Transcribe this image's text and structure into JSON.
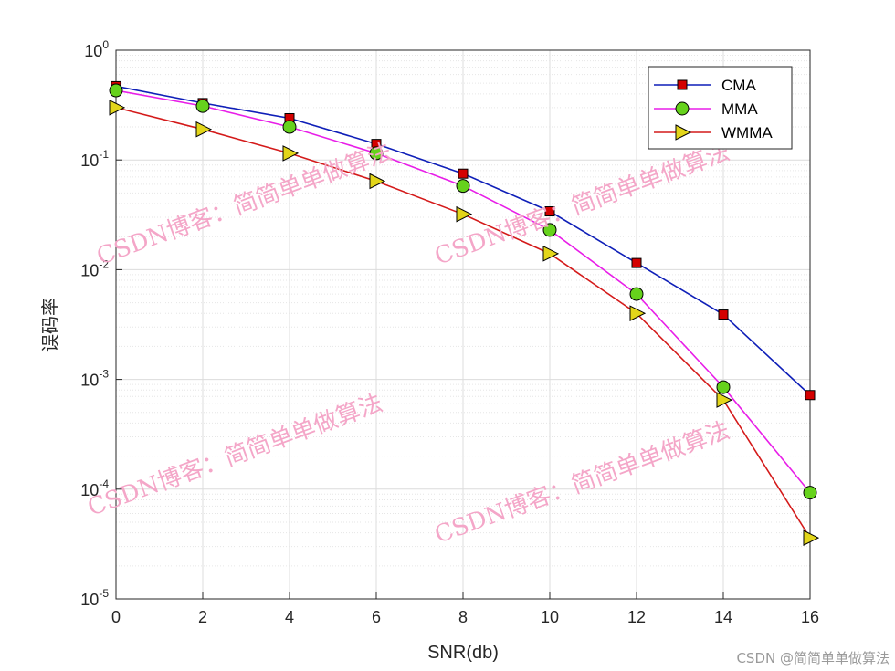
{
  "chart_data": {
    "type": "line",
    "xlabel": "SNR(db)",
    "ylabel": "误码率",
    "xlim": [
      0,
      16
    ],
    "ylim": [
      1e-05,
      1
    ],
    "yscale": "log",
    "xticks": [
      "0",
      "2",
      "4",
      "6",
      "8",
      "10",
      "12",
      "14",
      "16"
    ],
    "yticks": [
      {
        "base": "10",
        "exp": "0"
      },
      {
        "base": "10",
        "exp": "-1"
      },
      {
        "base": "10",
        "exp": "-2"
      },
      {
        "base": "10",
        "exp": "-3"
      },
      {
        "base": "10",
        "exp": "-4"
      },
      {
        "base": "10",
        "exp": "-5"
      }
    ],
    "grid": true,
    "legend_position": "top-right",
    "x": [
      0,
      2,
      4,
      6,
      8,
      10,
      12,
      14,
      16
    ],
    "series": [
      {
        "name": "CMA",
        "color": "#0f1fb8",
        "marker": "square",
        "marker_color": "#d40000",
        "values": [
          0.47,
          0.33,
          0.24,
          0.14,
          0.075,
          0.034,
          0.0115,
          0.0039,
          0.00072
        ]
      },
      {
        "name": "MMA",
        "color": "#e81ee8",
        "marker": "circle",
        "marker_color": "#66d21c",
        "values": [
          0.43,
          0.31,
          0.2,
          0.115,
          0.058,
          0.023,
          0.006,
          0.00085,
          9.3e-05
        ]
      },
      {
        "name": "WMMA",
        "color": "#d41a1a",
        "marker": "triangle-right",
        "marker_color": "#e3d61a",
        "values": [
          0.3,
          0.19,
          0.115,
          0.064,
          0.032,
          0.014,
          0.004,
          0.00065,
          3.6e-05
        ]
      }
    ]
  },
  "watermarks": [
    "CSDN博客：简简单单做算法",
    "CSDN博客：简简单单做算法",
    "CSDN博客：简简单单做算法",
    "CSDN博客：简简单单做算法"
  ],
  "credit": "CSDN @简简单单做算法"
}
